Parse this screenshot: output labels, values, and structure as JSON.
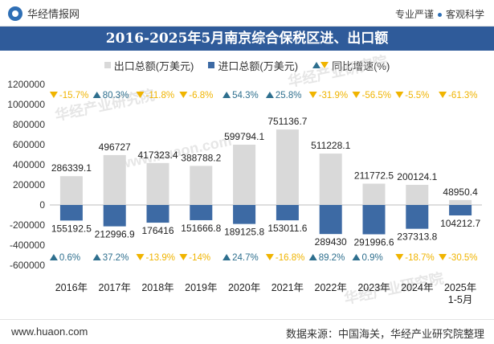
{
  "header": {
    "brand_name": "华经情报网",
    "slogan_left": "专业严谨",
    "slogan_right": "客观科学"
  },
  "footer": {
    "url": "www.huaon.com",
    "source": "数据来源：中国海关，华经产业研究院整理"
  },
  "watermarks": {
    "text_cn": "华经产业研究院",
    "text_url": "www.huaon.com"
  },
  "colors": {
    "title_bar": "#2f5b9a",
    "export_bar": "#d9d9d9",
    "import_bar": "#3d6aa4",
    "growth_up": "#2e6f8e",
    "growth_down": "#f0b400"
  },
  "chart_data": {
    "type": "bar",
    "title": "2016-2025年5月南京综合保税区进、出口额",
    "legend": [
      "出口总额(万美元)",
      "进口总额(万美元)",
      "同比增速(%)"
    ],
    "categories": [
      "2016年",
      "2017年",
      "2018年",
      "2019年",
      "2020年",
      "2021年",
      "2022年",
      "2023年",
      "2024年",
      "2025年 1-5月"
    ],
    "y_ticks": [
      "1200000",
      "1000000",
      "800000",
      "600000",
      "400000",
      "200000",
      "0",
      "-200000",
      "-400000",
      "-600000"
    ],
    "ylim": [
      -600000,
      1200000
    ],
    "series": [
      {
        "name": "出口总额(万美元)",
        "values": [
          286339.1,
          496727,
          417323.4,
          388788.2,
          599794.1,
          751136.7,
          511228.1,
          211772.5,
          200124.1,
          48950.4
        ],
        "labels": [
          "286339.1",
          "496727",
          "417323.4",
          "388788.2",
          "599794.1",
          "751136.7",
          "511228.1",
          "211772.5",
          "200124.1",
          "48950.4"
        ],
        "growth": [
          "-15.7%",
          "80.3%",
          "-11.8%",
          "-6.8%",
          "54.3%",
          "25.8%",
          "-31.9%",
          "-56.5%",
          "-5.5%",
          "-61.3%"
        ]
      },
      {
        "name": "进口总额(万美元)",
        "values": [
          -155192.5,
          -212996.9,
          -176416,
          -151666.8,
          -189125.8,
          -153011.6,
          -289430,
          -291996.6,
          -237313.8,
          -104212.7
        ],
        "labels": [
          "155192.5",
          "212996.9",
          "176416",
          "151666.8",
          "189125.8",
          "153011.6",
          "289430",
          "291996.6",
          "237313.8",
          "104212.7"
        ],
        "growth": [
          "0.6%",
          "37.2%",
          "-13.9%",
          "-14%",
          "24.7%",
          "-16.8%",
          "89.2%",
          "0.9%",
          "-18.7%",
          "-30.5%"
        ]
      }
    ]
  }
}
